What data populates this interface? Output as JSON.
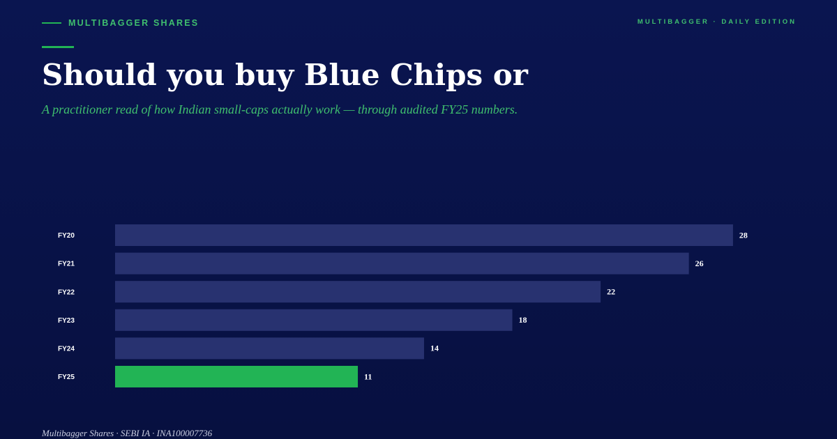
{
  "header": {
    "brand": "MULTIBAGGER SHARES",
    "edition": "MULTIBAGGER · DAILY EDITION"
  },
  "title": "Should you buy Blue Chips or",
  "subtitle": "A practitioner read of how Indian small-caps actually work — through audited FY25 numbers.",
  "footer": "Multibagger Shares · SEBI IA · INA100007736",
  "colors": {
    "background": "#0a1550",
    "bar": "#283270",
    "highlight": "#22b455",
    "accent_text": "#3fbf6e"
  },
  "chart_data": {
    "type": "bar",
    "orientation": "horizontal",
    "categories": [
      "FY20",
      "FY21",
      "FY22",
      "FY23",
      "FY24",
      "FY25"
    ],
    "values": [
      28,
      26,
      22,
      18,
      14,
      11
    ],
    "highlight_category": "FY25",
    "title": "",
    "xlabel": "",
    "ylabel": "",
    "grid": false
  }
}
